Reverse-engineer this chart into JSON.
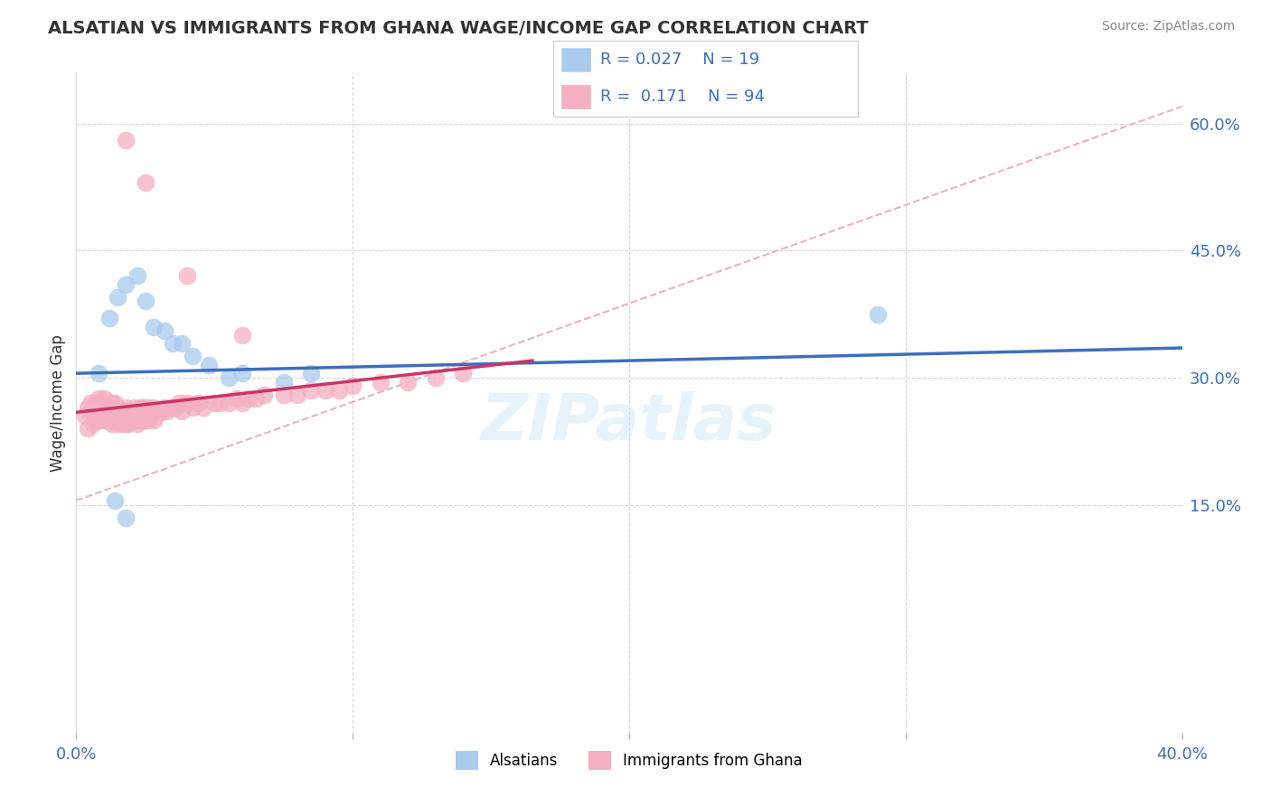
{
  "title": "ALSATIAN VS IMMIGRANTS FROM GHANA WAGE/INCOME GAP CORRELATION CHART",
  "source": "Source: ZipAtlas.com",
  "ylabel": "Wage/Income Gap",
  "xlim": [
    0.0,
    0.4
  ],
  "ylim": [
    -0.12,
    0.66
  ],
  "yticks_right": [
    0.15,
    0.3,
    0.45,
    0.6
  ],
  "ytick_labels_right": [
    "15.0%",
    "30.0%",
    "45.0%",
    "60.0%"
  ],
  "R_blue": 0.027,
  "N_blue": 19,
  "R_pink": 0.171,
  "N_pink": 94,
  "blue_color": "#aacbee",
  "pink_color": "#f4afc0",
  "blue_line_color": "#3d6ebf",
  "pink_line_color": "#cc3366",
  "diag_line_color": "#e8b4c0",
  "watermark": "ZIPatlas",
  "legend_labels": [
    "Alsatians",
    "Immigrants from Ghana"
  ],
  "background_color": "#ffffff",
  "grid_color": "#d8d8d8",
  "blue_scatter_x": [
    0.008,
    0.012,
    0.015,
    0.018,
    0.022,
    0.025,
    0.028,
    0.032,
    0.035,
    0.038,
    0.042,
    0.048,
    0.055,
    0.06,
    0.075,
    0.085,
    0.29,
    0.014,
    0.018
  ],
  "blue_scatter_y": [
    0.305,
    0.37,
    0.395,
    0.41,
    0.42,
    0.39,
    0.36,
    0.355,
    0.34,
    0.34,
    0.325,
    0.315,
    0.3,
    0.305,
    0.295,
    0.305,
    0.375,
    0.155,
    0.135
  ],
  "pink_scatter_x": [
    0.003,
    0.004,
    0.004,
    0.005,
    0.005,
    0.006,
    0.006,
    0.007,
    0.007,
    0.007,
    0.008,
    0.008,
    0.008,
    0.009,
    0.009,
    0.01,
    0.01,
    0.01,
    0.011,
    0.011,
    0.012,
    0.012,
    0.012,
    0.013,
    0.013,
    0.013,
    0.014,
    0.014,
    0.014,
    0.015,
    0.015,
    0.015,
    0.016,
    0.016,
    0.017,
    0.017,
    0.018,
    0.018,
    0.018,
    0.019,
    0.019,
    0.02,
    0.02,
    0.021,
    0.021,
    0.022,
    0.022,
    0.023,
    0.023,
    0.024,
    0.024,
    0.025,
    0.025,
    0.026,
    0.026,
    0.027,
    0.028,
    0.028,
    0.029,
    0.03,
    0.031,
    0.032,
    0.033,
    0.034,
    0.035,
    0.036,
    0.037,
    0.038,
    0.04,
    0.042,
    0.044,
    0.046,
    0.05,
    0.052,
    0.055,
    0.058,
    0.06,
    0.062,
    0.065,
    0.068,
    0.075,
    0.08,
    0.085,
    0.09,
    0.095,
    0.1,
    0.11,
    0.12,
    0.13,
    0.14,
    0.018,
    0.025,
    0.04,
    0.06
  ],
  "pink_scatter_y": [
    0.255,
    0.24,
    0.265,
    0.255,
    0.27,
    0.245,
    0.26,
    0.25,
    0.26,
    0.27,
    0.255,
    0.265,
    0.275,
    0.25,
    0.26,
    0.255,
    0.265,
    0.275,
    0.25,
    0.26,
    0.25,
    0.26,
    0.265,
    0.245,
    0.255,
    0.27,
    0.25,
    0.26,
    0.27,
    0.245,
    0.255,
    0.265,
    0.25,
    0.26,
    0.245,
    0.26,
    0.245,
    0.255,
    0.265,
    0.245,
    0.26,
    0.25,
    0.26,
    0.25,
    0.265,
    0.245,
    0.26,
    0.25,
    0.265,
    0.25,
    0.265,
    0.25,
    0.265,
    0.25,
    0.265,
    0.255,
    0.25,
    0.265,
    0.255,
    0.26,
    0.26,
    0.265,
    0.26,
    0.265,
    0.265,
    0.265,
    0.27,
    0.26,
    0.27,
    0.265,
    0.27,
    0.265,
    0.27,
    0.27,
    0.27,
    0.275,
    0.27,
    0.275,
    0.275,
    0.28,
    0.28,
    0.28,
    0.285,
    0.285,
    0.285,
    0.29,
    0.295,
    0.295,
    0.3,
    0.305,
    0.58,
    0.53,
    0.42,
    0.35
  ]
}
